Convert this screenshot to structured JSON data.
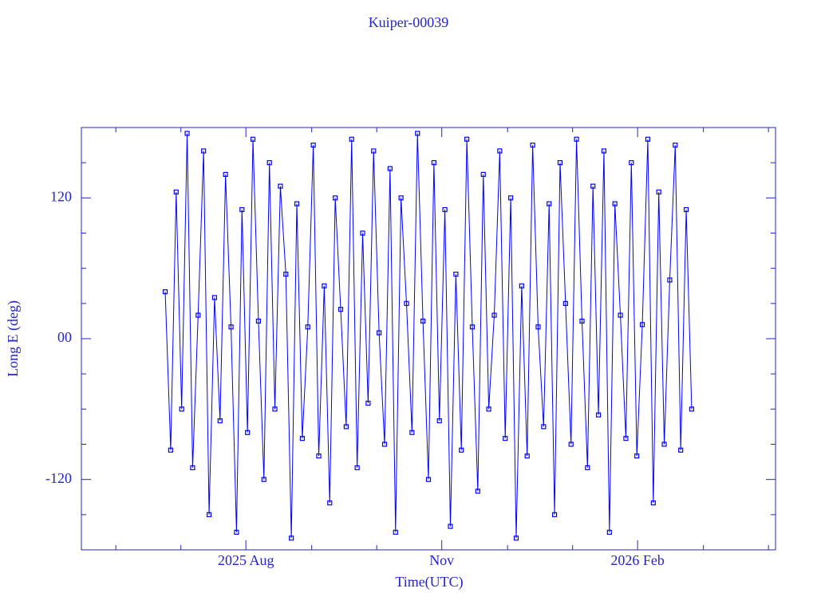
{
  "chart_data": {
    "type": "line",
    "title": "Kuiper-00039",
    "xlabel": "Time(UTC)",
    "ylabel": "Long E (deg)",
    "x": [
      2025.48,
      2025.487,
      2025.494,
      2025.501,
      2025.508,
      2025.515,
      2025.522,
      2025.529,
      2025.536,
      2025.543,
      2025.55,
      2025.557,
      2025.564,
      2025.571,
      2025.578,
      2025.585,
      2025.592,
      2025.599,
      2025.606,
      2025.613,
      2025.62,
      2025.627,
      2025.634,
      2025.641,
      2025.648,
      2025.655,
      2025.662,
      2025.669,
      2025.676,
      2025.683,
      2025.69,
      2025.697,
      2025.704,
      2025.711,
      2025.718,
      2025.725,
      2025.732,
      2025.739,
      2025.746,
      2025.753,
      2025.76,
      2025.767,
      2025.774,
      2025.781,
      2025.788,
      2025.795,
      2025.802,
      2025.809,
      2025.816,
      2025.823,
      2025.83,
      2025.837,
      2025.844,
      2025.851,
      2025.858,
      2025.865,
      2025.872,
      2025.879,
      2025.886,
      2025.893,
      2025.9,
      2025.907,
      2025.914,
      2025.921,
      2025.928,
      2025.935,
      2025.942,
      2025.949,
      2025.956,
      2025.963,
      2025.97,
      2025.977,
      2025.984,
      2025.991,
      2025.998,
      2026.005,
      2026.012,
      2026.019,
      2026.026,
      2026.033,
      2026.04,
      2026.047,
      2026.054,
      2026.061,
      2026.068,
      2026.075,
      2026.082,
      2026.089,
      2026.096,
      2026.103,
      2026.11,
      2026.117,
      2026.124,
      2026.131,
      2026.138,
      2026.145,
      2026.152
    ],
    "values": [
      40,
      -95,
      125,
      -60,
      175,
      -110,
      20,
      160,
      -150,
      35,
      -70,
      140,
      10,
      -165,
      110,
      -80,
      170,
      15,
      -120,
      150,
      -60,
      130,
      55,
      -170,
      115,
      -85,
      10,
      165,
      -100,
      45,
      -140,
      120,
      25,
      -75,
      170,
      -110,
      90,
      -55,
      160,
      5,
      -90,
      145,
      -165,
      120,
      30,
      -80,
      175,
      15,
      -120,
      150,
      -70,
      110,
      -160,
      55,
      -95,
      170,
      10,
      -130,
      140,
      -60,
      20,
      160,
      -85,
      120,
      -170,
      45,
      -100,
      165,
      10,
      -75,
      115,
      -150,
      150,
      30,
      -90,
      170,
      15,
      -110,
      130,
      -65,
      160,
      -165,
      115,
      20,
      -85,
      150,
      -100,
      12,
      170,
      -140,
      125,
      -90,
      50,
      165,
      -95,
      110,
      -60
    ],
    "color": "#0000ff",
    "xlim": [
      2025.373,
      2026.259
    ],
    "ylim": [
      -180,
      180
    ],
    "yticks": [
      -120,
      {
        "value": 0,
        "label": "00"
      },
      120
    ],
    "y_minor_ticks": [
      -150,
      -90,
      -60,
      -30,
      30,
      60,
      90,
      150
    ],
    "xticks": [
      {
        "value": 2025.583,
        "label": "2025 Aug"
      },
      {
        "value": 2025.833,
        "label": "Nov"
      },
      {
        "value": 2026.083,
        "label": "2026 Feb"
      }
    ],
    "x_minor_ticks": [
      2025.417,
      2025.5,
      2025.667,
      2025.75,
      2025.917,
      2026.0,
      2026.167,
      2026.25
    ]
  }
}
